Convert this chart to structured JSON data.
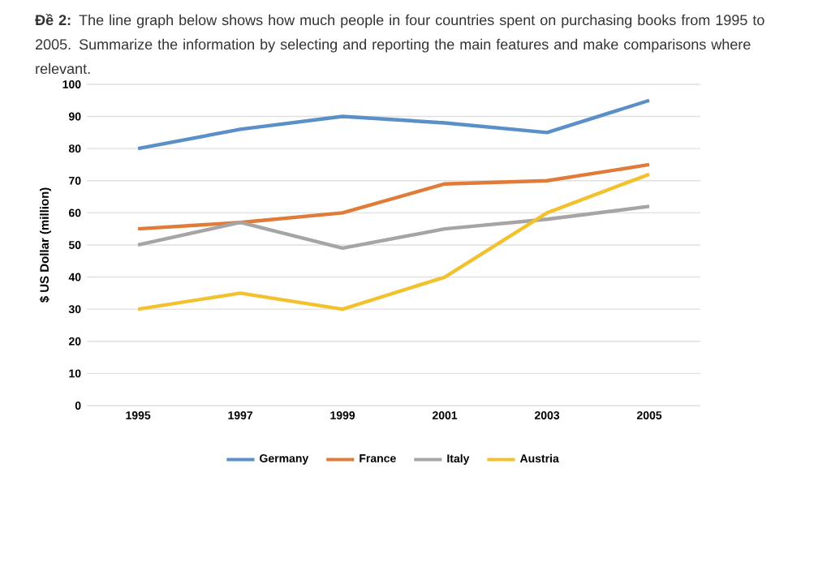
{
  "chart_data": {
    "type": "line",
    "title": "**Đề 2:** The line graph below shows how much people in four countries spent on purchasing books from 1995 to 2005. Summarize the information by selecting and reporting the main features and make comparisons where relevant.",
    "ylabel": "$ US Dollar (million)",
    "categories": [
      "1995",
      "1997",
      "1999",
      "2001",
      "2003",
      "2005"
    ],
    "series": [
      {
        "name": "Germany",
        "color": "#5b8fc7",
        "values": [
          80,
          86,
          90,
          88,
          85,
          95
        ]
      },
      {
        "name": "France",
        "color": "#e07b39",
        "values": [
          55,
          57,
          60,
          69,
          70,
          75
        ]
      },
      {
        "name": "Italy",
        "color": "#a5a5a5",
        "values": [
          50,
          57,
          49,
          55,
          58,
          62
        ]
      },
      {
        "name": "Austria",
        "color": "#f2c12e",
        "values": [
          30,
          35,
          30,
          40,
          60,
          72
        ]
      }
    ],
    "ylim": [
      0,
      100
    ],
    "yticks": [
      0,
      10,
      20,
      30,
      40,
      50,
      60,
      70,
      80,
      90,
      100
    ],
    "grid": "y",
    "legend": "bottom",
    "marker": "none",
    "line_style": "solid"
  }
}
